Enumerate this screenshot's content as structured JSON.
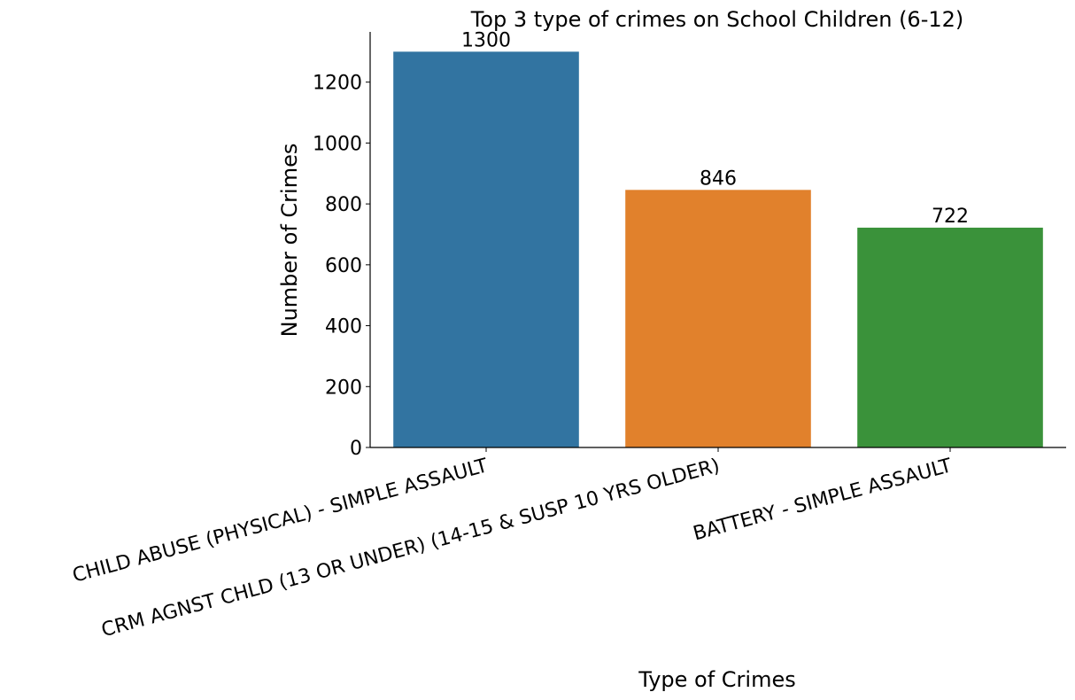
{
  "chart_data": {
    "type": "bar",
    "title": "Top 3 type of crimes on School Children (6-12)",
    "xlabel": "Type of Crimes",
    "ylabel": "Number of Crimes",
    "categories": [
      "CHILD ABUSE (PHYSICAL) - SIMPLE ASSAULT",
      "CRM AGNST CHLD (13 OR UNDER) (14-15 & SUSP 10 YRS OLDER)",
      "BATTERY - SIMPLE ASSAULT"
    ],
    "values": [
      1300,
      846,
      722
    ],
    "data_labels": [
      "1300",
      "846",
      "722"
    ],
    "colors": [
      "#3274a1",
      "#e1812c",
      "#3a923a"
    ],
    "yticks": [
      0,
      200,
      400,
      600,
      800,
      1000,
      1200
    ],
    "ylim": [
      0,
      1365
    ],
    "grid": false,
    "legend": "none"
  }
}
